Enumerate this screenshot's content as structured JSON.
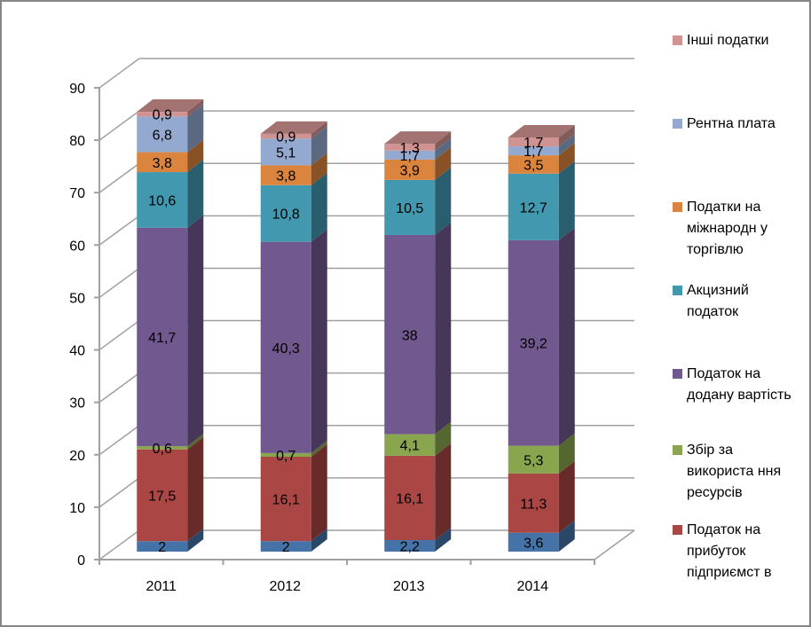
{
  "chart_data": {
    "type": "bar",
    "subtype": "3d-stacked-column",
    "title": "",
    "xlabel": "",
    "ylabel": "",
    "categories": [
      "2011",
      "2012",
      "2013",
      "2014"
    ],
    "ylim": [
      0,
      90
    ],
    "yticks": [
      0,
      10,
      20,
      30,
      40,
      50,
      60,
      70,
      80,
      90
    ],
    "grid": true,
    "legend_position": "right",
    "series": [
      {
        "name": "Податок на прибуток підприємств",
        "color": "#4572A7",
        "values": [
          2,
          2,
          2.2,
          3.6
        ],
        "labels": [
          "2",
          "2",
          "2,2",
          "3,6"
        ]
      },
      {
        "name": "Податок на прибуток підприємств",
        "color": "#AA4643",
        "values": [
          17.5,
          16.1,
          16.1,
          11.3
        ],
        "labels": [
          "17,5",
          "16,1",
          "16,1",
          "11,3"
        ]
      },
      {
        "name": "Збір за використання ресурсів",
        "color": "#89A54E",
        "values": [
          0.6,
          0.7,
          4.1,
          5.3
        ],
        "labels": [
          "0,6",
          "0,7",
          "4,1",
          "5,3"
        ]
      },
      {
        "name": "Податок на додану вартість",
        "color": "#71588F",
        "values": [
          41.7,
          40.3,
          38,
          39.2
        ],
        "labels": [
          "41,7",
          "40,3",
          "38",
          "39,2"
        ]
      },
      {
        "name": "Акцизний податок",
        "color": "#4198AF",
        "values": [
          10.6,
          10.8,
          10.5,
          12.7
        ],
        "labels": [
          "10,6",
          "10,8",
          "10,5",
          "12,7"
        ]
      },
      {
        "name": "Податки на міжнародну торгівлю",
        "color": "#DB843D",
        "values": [
          3.8,
          3.8,
          3.9,
          3.5
        ],
        "labels": [
          "3,8",
          "3,8",
          "3,9",
          "3,5"
        ]
      },
      {
        "name": "Рентна плата",
        "color": "#93A9CF",
        "values": [
          6.8,
          5.1,
          1.7,
          1.7
        ],
        "labels": [
          "6,8",
          "5,1",
          "1,7",
          "1,7"
        ]
      },
      {
        "name": "Інші податки",
        "color": "#D19392",
        "values": [
          0.9,
          0.9,
          1.3,
          1.7
        ],
        "labels": [
          "0,9",
          "0,9",
          "1,3",
          "1,7"
        ]
      }
    ]
  },
  "legend": {
    "items": [
      {
        "label": "Інші податки",
        "color": "#D19392"
      },
      {
        "label": "Рентна плата",
        "color": "#93A9CF"
      },
      {
        "label": "Податки на міжнародн у торгівлю",
        "color": "#DB843D"
      },
      {
        "label": "Акцизний податок",
        "color": "#4198AF"
      },
      {
        "label": "Податок на додану вартість",
        "color": "#71588F"
      },
      {
        "label": "Збір за використа ння ресурсів",
        "color": "#89A54E"
      },
      {
        "label": "Податок на прибуток підприємст в",
        "color": "#AA4643"
      }
    ]
  }
}
